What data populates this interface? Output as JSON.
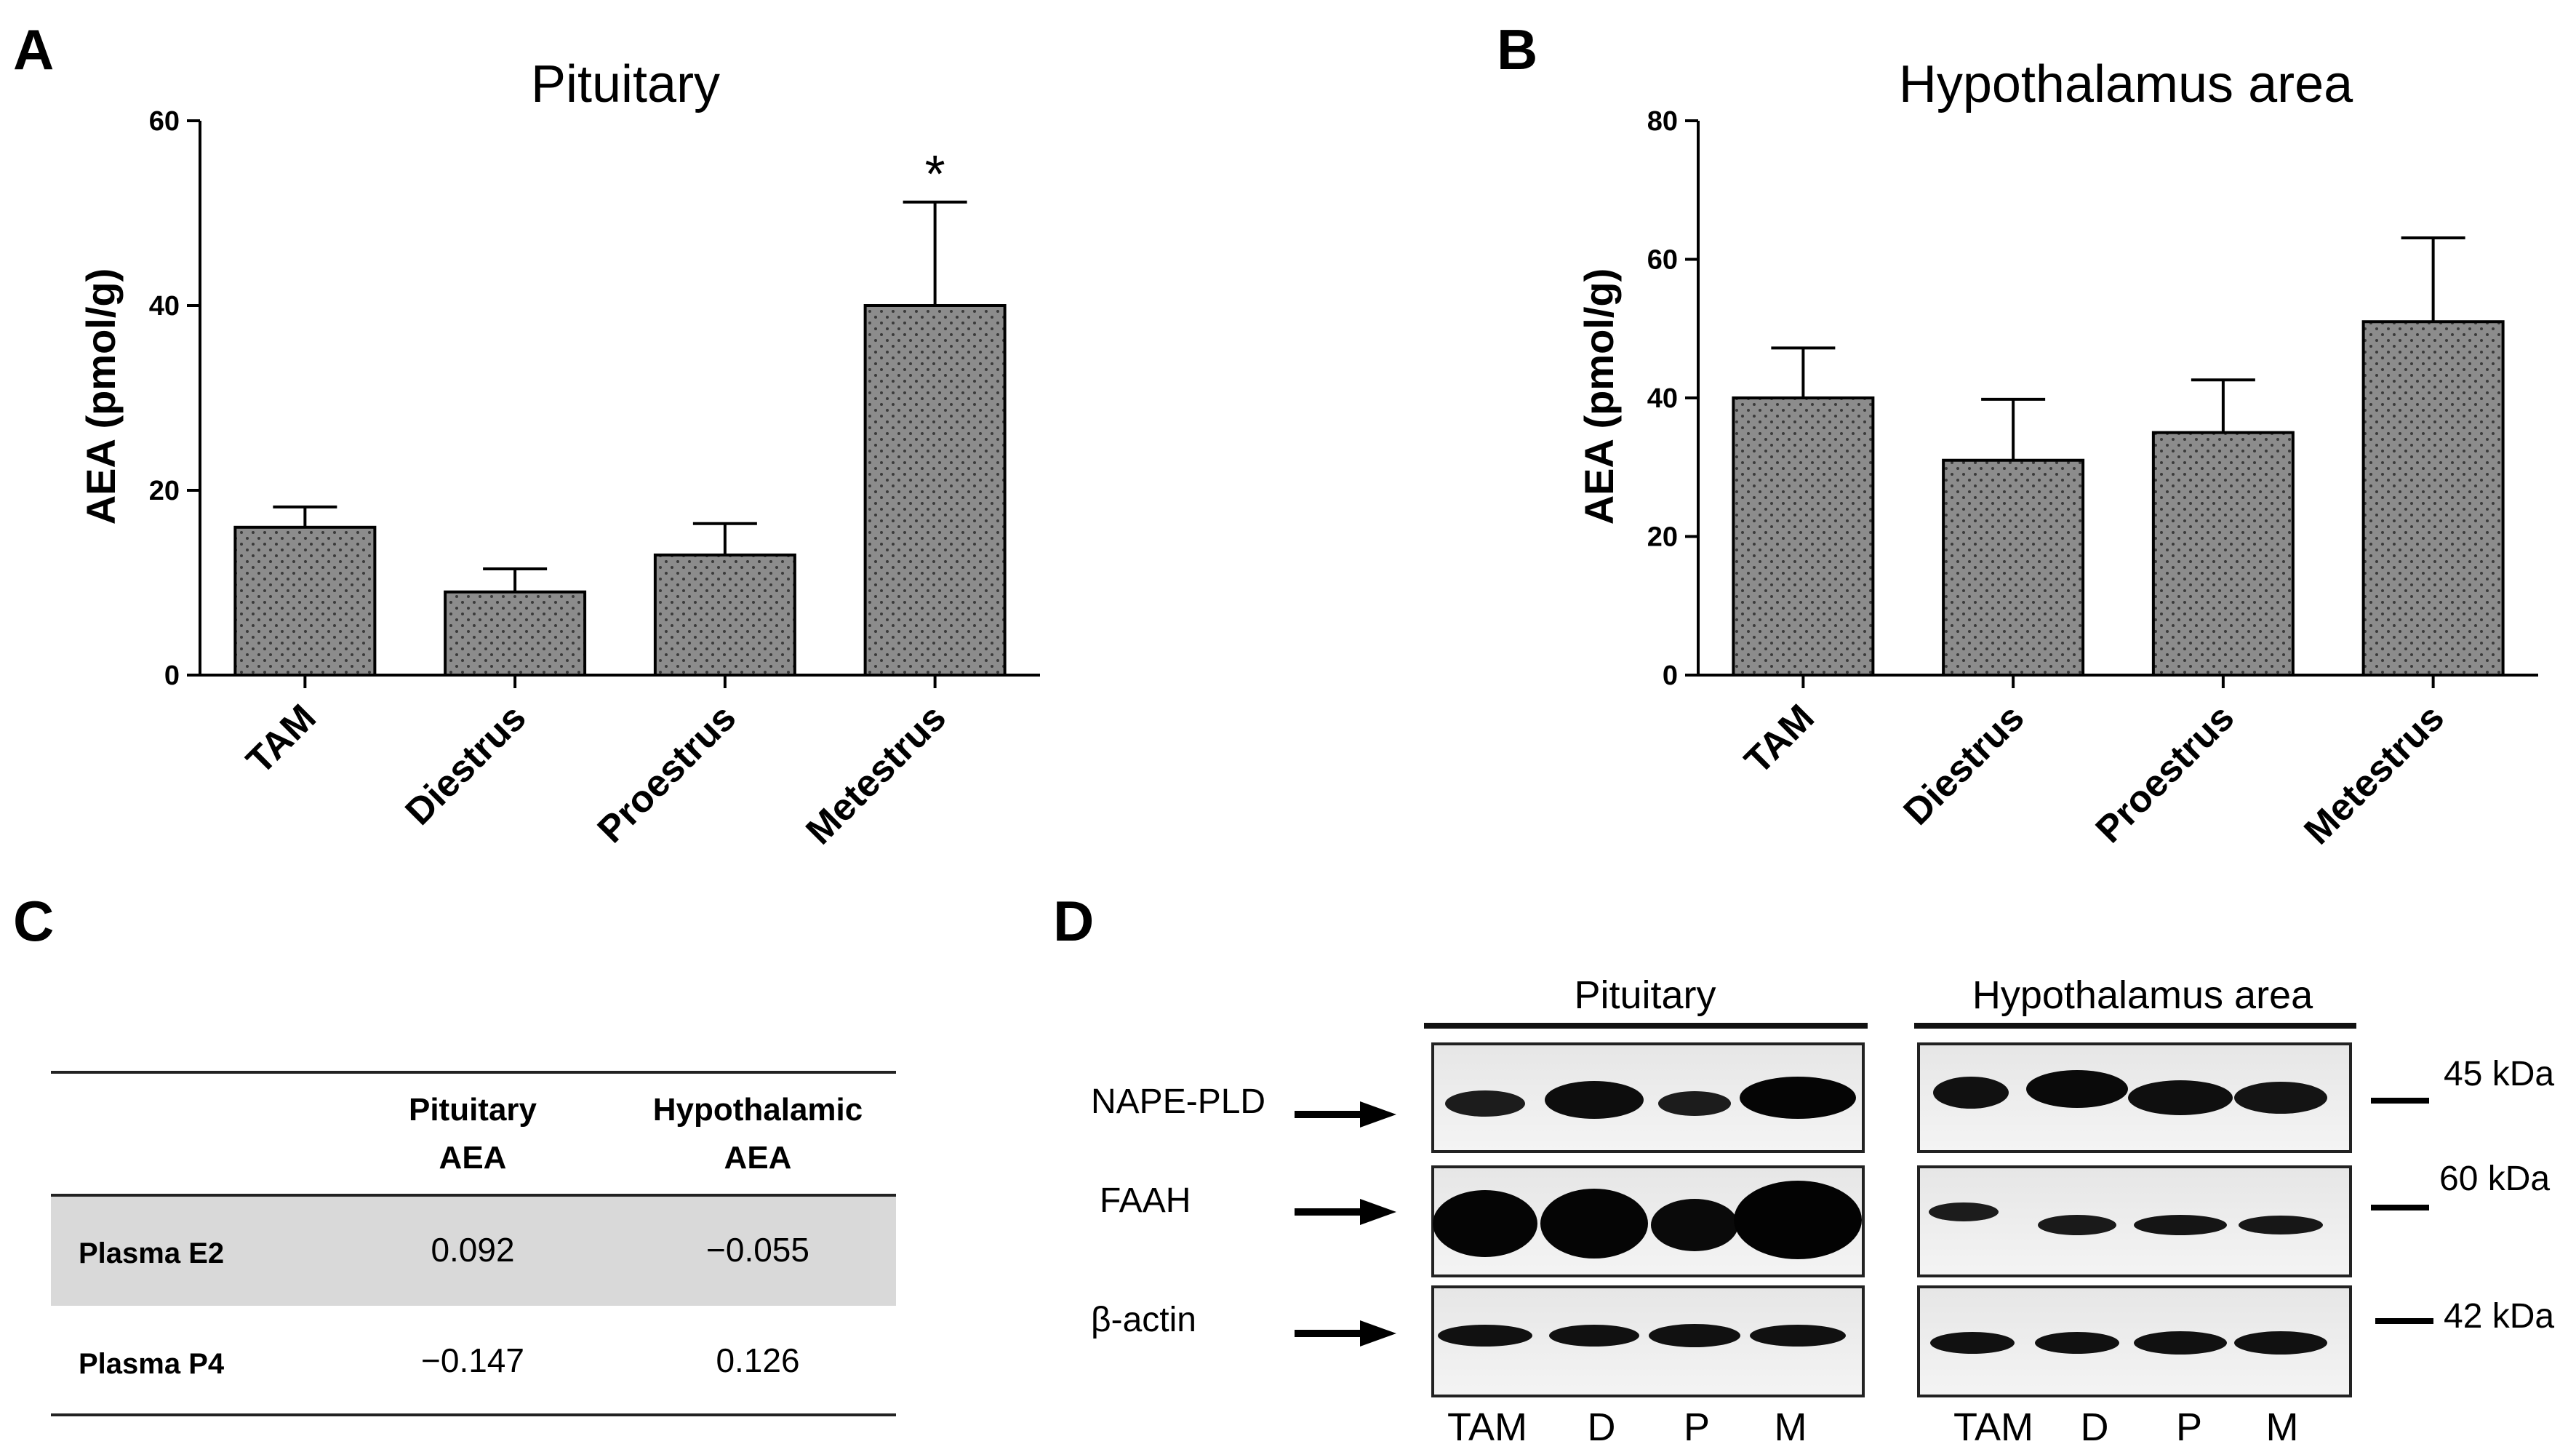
{
  "panels": {
    "A": "A",
    "B": "B",
    "C": "C",
    "D": "D"
  },
  "chart_data": [
    {
      "type": "bar",
      "title": "Pituitary",
      "ylabel": "AEA (pmol/g)",
      "xlabel": "",
      "categories": [
        "TAM",
        "Diestrus",
        "Proestrus",
        "Metestrus"
      ],
      "values": [
        16,
        9,
        13,
        40
      ],
      "errors": [
        2.2,
        2.5,
        3.4,
        11.2
      ],
      "ylim": [
        0,
        60
      ],
      "yticks": [
        "0",
        "20",
        "40",
        "60"
      ],
      "annotations": [
        "",
        "",
        "",
        "*"
      ],
      "bar_color": "#8c8c8c"
    },
    {
      "type": "bar",
      "title": "Hypothalamus  area",
      "ylabel": "AEA (pmol/g)",
      "xlabel": "",
      "categories": [
        "TAM",
        "Diestrus",
        "Proestrus",
        "Metestrus"
      ],
      "values": [
        40,
        31,
        35,
        51
      ],
      "errors": [
        7.2,
        8.8,
        7.6,
        12.1
      ],
      "ylim": [
        0,
        80
      ],
      "yticks": [
        "0",
        "20",
        "40",
        "60",
        "80"
      ],
      "annotations": [
        "",
        "",
        "",
        ""
      ],
      "bar_color": "#8c8c8c"
    }
  ],
  "table": {
    "headers": [
      "",
      "Pituitary\nAEA",
      "Hypothalamic\nAEA"
    ],
    "rows": [
      {
        "label": "Plasma E2",
        "values": [
          "0.092",
          "−0.055"
        ]
      },
      {
        "label": "Plasma P4",
        "values": [
          "−0.147",
          "0.126"
        ]
      }
    ],
    "highlight_color": "#d9d9d9"
  },
  "western": {
    "groups": [
      "Pituitary",
      "Hypothalamus area"
    ],
    "proteins": [
      "NAPE-PLD",
      "FAAH",
      "β-actin"
    ],
    "markers": [
      "45 kDa",
      "60 kDa",
      "42 kDa"
    ],
    "lanes": [
      "TAM",
      "D",
      "P",
      "M"
    ]
  }
}
